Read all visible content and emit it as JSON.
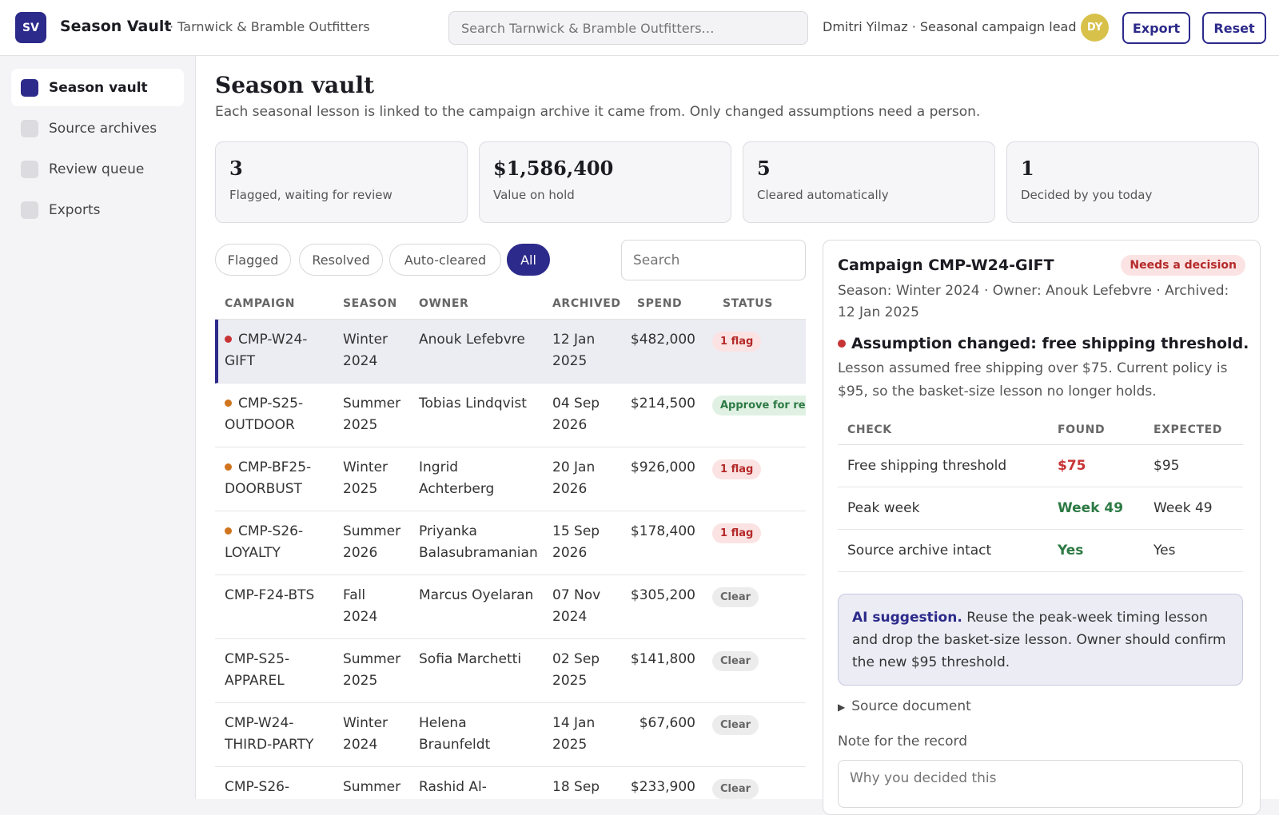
{
  "header": {
    "logo_text": "SV",
    "app_title": "Season Vault",
    "org_subtitle": "· Tarnwick & Bramble Outfitters",
    "search_placeholder": "Search Tarnwick & Bramble Outfitters…",
    "user_text": "Dmitri Yilmaz · Seasonal campaign lead",
    "avatar_initials": "DY",
    "export_label": "Export",
    "reset_label": "Reset"
  },
  "sidebar": {
    "items": [
      {
        "label": "Season vault",
        "active": true
      },
      {
        "label": "Source archives",
        "active": false
      },
      {
        "label": "Review queue",
        "active": false
      },
      {
        "label": "Exports",
        "active": false
      }
    ]
  },
  "main": {
    "title": "Season vault",
    "description": "Each seasonal lesson is linked to the campaign archive it came from. Only changed assumptions need a person.",
    "stats": [
      {
        "value": "3",
        "label": "Flagged, waiting for review"
      },
      {
        "value": "$1,586,400",
        "label": "Value on hold"
      },
      {
        "value": "5",
        "label": "Cleared automatically"
      },
      {
        "value": "1",
        "label": "Decided by you today"
      }
    ],
    "filters": [
      "Flagged",
      "Resolved",
      "Auto-cleared",
      "All"
    ],
    "active_filter": "All",
    "list_search_placeholder": "Search"
  },
  "table": {
    "headers": [
      "CAMPAIGN",
      "SEASON",
      "OWNER",
      "ARCHIVED",
      "SPEND",
      "STATUS"
    ],
    "rows": [
      {
        "campaign_l1": "CMP-W24-",
        "campaign_l2": "GIFT",
        "season_l1": "Winter",
        "season_l2": "2024",
        "owner_l1": "Anouk Lefebvre",
        "owner_l2": "",
        "archived_l1": "12 Jan",
        "archived_l2": "2025",
        "spend": "$482,000",
        "status": "1 flag",
        "status_type": "flag",
        "dot": "#c73434",
        "selected": true
      },
      {
        "campaign_l1": "CMP-S25-",
        "campaign_l2": "OUTDOOR",
        "season_l1": "Summer",
        "season_l2": "2025",
        "owner_l1": "Tobias Lindqvist",
        "owner_l2": "",
        "archived_l1": "04 Sep",
        "archived_l2": "2026",
        "spend": "$214,500",
        "status": "Approve for re-run",
        "status_type": "approve",
        "dot": "#d0741e",
        "selected": false
      },
      {
        "campaign_l1": "CMP-BF25-",
        "campaign_l2": "DOORBUST",
        "season_l1": "Winter",
        "season_l2": "2025",
        "owner_l1": "Ingrid",
        "owner_l2": "Achterberg",
        "archived_l1": "20 Jan",
        "archived_l2": "2026",
        "spend": "$926,000",
        "status": "1 flag",
        "status_type": "flag",
        "dot": "#d0741e",
        "selected": false
      },
      {
        "campaign_l1": "CMP-S26-",
        "campaign_l2": "LOYALTY",
        "season_l1": "Summer",
        "season_l2": "2026",
        "owner_l1": "Priyanka",
        "owner_l2": "Balasubramanian",
        "archived_l1": "15 Sep",
        "archived_l2": "2026",
        "spend": "$178,400",
        "status": "1 flag",
        "status_type": "flag",
        "dot": "#d0741e",
        "selected": false
      },
      {
        "campaign_l1": "CMP-F24-BTS",
        "campaign_l2": "",
        "season_l1": "Fall",
        "season_l2": "2024",
        "owner_l1": "Marcus Oyelaran",
        "owner_l2": "",
        "archived_l1": "07 Nov",
        "archived_l2": "2024",
        "spend": "$305,200",
        "status": "Clear",
        "status_type": "clear",
        "dot": "",
        "selected": false
      },
      {
        "campaign_l1": "CMP-S25-",
        "campaign_l2": "APPAREL",
        "season_l1": "Summer",
        "season_l2": "2025",
        "owner_l1": "Sofia Marchetti",
        "owner_l2": "",
        "archived_l1": "02 Sep",
        "archived_l2": "2025",
        "spend": "$141,800",
        "status": "Clear",
        "status_type": "clear",
        "dot": "",
        "selected": false
      },
      {
        "campaign_l1": "CMP-W24-",
        "campaign_l2": "THIRD-PARTY",
        "season_l1": "Winter",
        "season_l2": "2024",
        "owner_l1": "Helena",
        "owner_l2": "Braunfeldt",
        "archived_l1": "14 Jan",
        "archived_l2": "2025",
        "spend": "$67,600",
        "status": "Clear",
        "status_type": "clear",
        "dot": "",
        "selected": false
      },
      {
        "campaign_l1": "CMP-S26-",
        "campaign_l2": "",
        "season_l1": "Summer",
        "season_l2": "",
        "owner_l1": "Rashid Al-",
        "owner_l2": "",
        "archived_l1": "18 Sep",
        "archived_l2": "",
        "spend": "$233,900",
        "status": "Clear",
        "status_type": "clear",
        "dot": "",
        "selected": false
      }
    ]
  },
  "detail": {
    "title": "Campaign CMP-W24-GIFT",
    "badge": "Needs a decision",
    "meta": "Season: Winter 2024 · Owner: Anouk Lefebvre · Archived: 12 Jan 2025",
    "assumption": "Assumption changed: free shipping threshold.",
    "assumption_desc": "Lesson assumed free shipping over $75. Current policy is $95, so the basket-size lesson no longer holds.",
    "check_headers": [
      "CHECK",
      "FOUND",
      "EXPECTED"
    ],
    "checks": [
      {
        "check": "Free shipping threshold",
        "found": "$75",
        "expected": "$95",
        "found_color": "#c73434"
      },
      {
        "check": "Peak week",
        "found": "Week 49",
        "expected": "Week 49",
        "found_color": "#2d7a44"
      },
      {
        "check": "Source archive intact",
        "found": "Yes",
        "expected": "Yes",
        "found_color": "#2d7a44"
      }
    ],
    "ai_lead": "AI suggestion.",
    "ai_text": " Reuse the peak-week timing lesson and drop the basket-size lesson. Owner should confirm the new $95 threshold.",
    "source_doc_label": "Source document",
    "note_label": "Note for the record",
    "note_placeholder": "Why you decided this"
  },
  "colors": {
    "accent": "#2c2a8a",
    "flag_red": "#c73434",
    "warn_orange": "#d0741e",
    "ok_green": "#2d7a44"
  }
}
